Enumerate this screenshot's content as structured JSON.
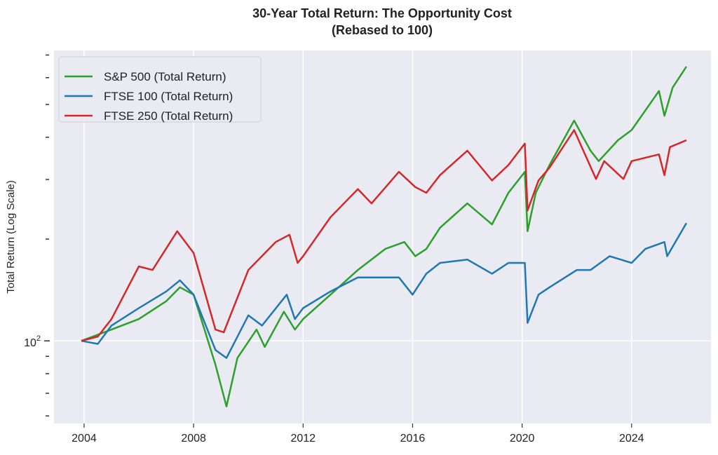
{
  "chart_data": {
    "type": "line",
    "title": "30-Year Total Return: The Opportunity Cost",
    "subtitle": "(Rebased to 100)",
    "xlabel": "",
    "ylabel": "Total Return (Log Scale)",
    "yscale": "log",
    "xlim": [
      2002.9,
      2026.9
    ],
    "ylim": [
      57,
      722
    ],
    "xticks": [
      2004,
      2008,
      2012,
      2016,
      2020,
      2024
    ],
    "xtick_labels": [
      "2004",
      "2008",
      "2012",
      "2016",
      "2020",
      "2024"
    ],
    "yticks_major": [
      100
    ],
    "ytick_major_label_base": "10",
    "ytick_major_label_exp": "2",
    "yticks_minor": [
      60,
      70,
      80,
      90,
      200,
      300,
      400,
      500,
      600,
      700
    ],
    "grid": true,
    "legend_position": "top-left",
    "series": [
      {
        "name": "S&P 500 (Total Return)",
        "color": "#2ca02c",
        "x": [
          2003.9,
          2005,
          2006,
          2007,
          2007.5,
          2008,
          2008.8,
          2009.2,
          2009.6,
          2010.3,
          2010.6,
          2011.3,
          2011.7,
          2012,
          2013,
          2014,
          2015,
          2015.7,
          2016.1,
          2016.5,
          2017,
          2018,
          2018.9,
          2019.5,
          2020.1,
          2020.2,
          2020.5,
          2021,
          2021.9,
          2022.5,
          2022.8,
          2023.5,
          2024,
          2025,
          2025.2,
          2025.5,
          2026
        ],
        "y": [
          100,
          108,
          116,
          131,
          144,
          137,
          85,
          64,
          89,
          108,
          96,
          122,
          108,
          116,
          137,
          162,
          187,
          196,
          178,
          187,
          216,
          255,
          221,
          274,
          316,
          211,
          274,
          331,
          448,
          365,
          340,
          392,
          420,
          548,
          463,
          561,
          647
        ]
      },
      {
        "name": "FTSE 100 (Total Return)",
        "color": "#1f77b4",
        "x": [
          2003.9,
          2004.5,
          2005,
          2006,
          2007,
          2007.5,
          2008,
          2008.8,
          2009.2,
          2010,
          2010.5,
          2011.4,
          2011.7,
          2012,
          2013,
          2014,
          2015,
          2015.5,
          2016,
          2016.5,
          2017,
          2018,
          2018.9,
          2019.5,
          2020.1,
          2020.2,
          2020.6,
          2021,
          2022,
          2022.5,
          2023.2,
          2024,
          2024.5,
          2025.2,
          2025.3,
          2026
        ],
        "y": [
          100,
          98,
          111,
          125,
          140,
          151,
          137,
          94,
          89,
          119,
          111,
          137,
          116,
          125,
          140,
          154,
          154,
          154,
          137,
          158,
          170,
          174,
          158,
          170,
          170,
          113,
          137,
          144,
          162,
          162,
          178,
          170,
          187,
          196,
          178,
          223
        ]
      },
      {
        "name": "FTSE 250 (Total Return)",
        "color": "#d62728",
        "x": [
          2003.9,
          2004.5,
          2005,
          2006,
          2006.5,
          2007.4,
          2008,
          2008.8,
          2009.1,
          2010,
          2011,
          2011.5,
          2011.8,
          2012,
          2013,
          2014,
          2014.5,
          2015.5,
          2016.1,
          2016.5,
          2017,
          2018,
          2018.9,
          2019.5,
          2020.1,
          2020.2,
          2020.6,
          2021,
          2021.9,
          2022.7,
          2023,
          2023.7,
          2024,
          2025,
          2025.2,
          2025.4,
          2026
        ],
        "y": [
          100,
          103,
          116,
          166,
          162,
          211,
          182,
          108,
          106,
          162,
          196,
          206,
          170,
          178,
          232,
          281,
          255,
          316,
          285,
          274,
          309,
          365,
          298,
          331,
          383,
          243,
          298,
          325,
          420,
          301,
          340,
          301,
          340,
          356,
          309,
          374,
          392
        ]
      }
    ]
  }
}
